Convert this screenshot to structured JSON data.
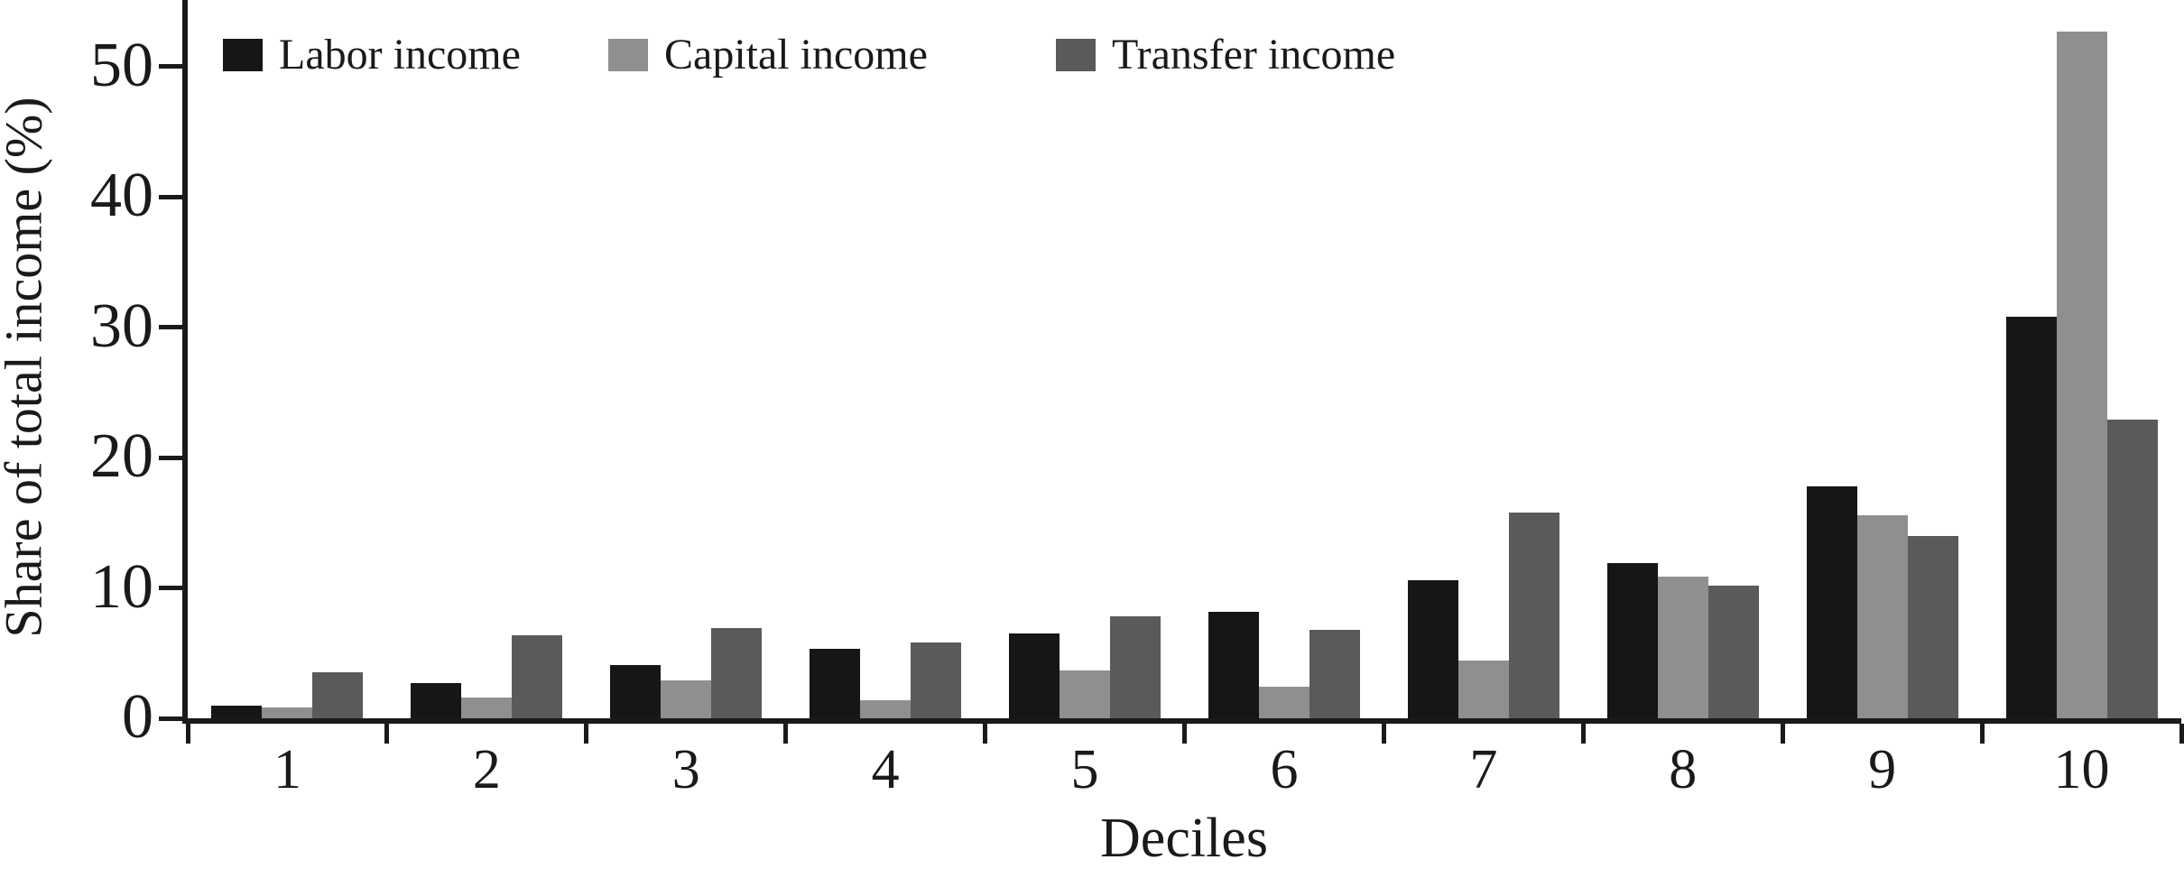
{
  "chart_data": {
    "type": "bar",
    "title": "",
    "categories": [
      "1",
      "2",
      "3",
      "4",
      "5",
      "6",
      "7",
      "8",
      "9",
      "10"
    ],
    "series": [
      {
        "name": "Labor income",
        "color": "#161616",
        "values": [
          1.0,
          2.7,
          4.1,
          5.3,
          6.5,
          8.2,
          10.6,
          11.9,
          17.8,
          30.8
        ]
      },
      {
        "name": "Capital income",
        "color": "#8f8f8f",
        "values": [
          0.8,
          1.6,
          2.9,
          1.4,
          3.7,
          2.4,
          4.4,
          10.9,
          15.6,
          52.7
        ]
      },
      {
        "name": "Transfer income",
        "color": "#5a5a5a",
        "values": [
          3.5,
          6.4,
          6.9,
          5.8,
          7.8,
          6.8,
          15.8,
          10.2,
          14.0,
          22.9
        ]
      }
    ],
    "xlabel": "Deciles",
    "ylabel": "Share of total income (%)",
    "yticks": [
      0,
      10,
      20,
      30,
      40,
      50
    ],
    "ylim": [
      0,
      55.1
    ],
    "grid": false,
    "legend_position": "top-left",
    "axis_color": "#1a1a1a"
  }
}
